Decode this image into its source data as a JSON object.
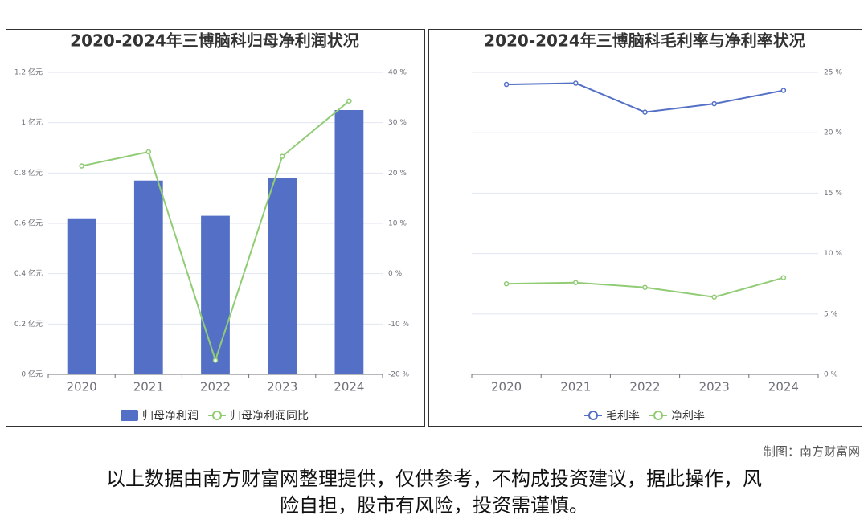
{
  "chart_data": [
    {
      "type": "combo",
      "title": "2020-2024年三博脑科归母净利润状况",
      "categories": [
        "2020",
        "2021",
        "2022",
        "2023",
        "2024"
      ],
      "series": [
        {
          "name": "归母净利润",
          "type": "bar",
          "color": "#5470c6",
          "values": [
            0.62,
            0.77,
            0.63,
            0.78,
            1.05
          ]
        },
        {
          "name": "归母净利润同比",
          "type": "line",
          "axis": "y2",
          "color": "#91cc75",
          "values": [
            21.4,
            24.2,
            -17.2,
            23.3,
            34.3
          ]
        }
      ],
      "ylim": [
        0,
        1.2
      ],
      "yticks": [
        {
          "value": 0,
          "label": "0 亿元"
        },
        {
          "value": 0.2,
          "label": "0.2 亿元"
        },
        {
          "value": 0.4,
          "label": "0.4 亿元"
        },
        {
          "value": 0.6,
          "label": "0.6 亿元"
        },
        {
          "value": 0.8,
          "label": "0.8 亿元"
        },
        {
          "value": 1,
          "label": "1 亿元"
        },
        {
          "value": 1.2,
          "label": "1.2 亿元"
        }
      ],
      "y2lim": [
        -20,
        40
      ],
      "y2ticks": [
        {
          "value": -20,
          "label": "-20 %"
        },
        {
          "value": -10,
          "label": "-10 %"
        },
        {
          "value": 0,
          "label": "0 %"
        },
        {
          "value": 10,
          "label": "10 %"
        },
        {
          "value": 20,
          "label": "20 %"
        },
        {
          "value": 30,
          "label": "30 %"
        },
        {
          "value": 40,
          "label": "40 %"
        }
      ],
      "grid": true,
      "legend": "bottom"
    },
    {
      "type": "line",
      "title": "2020-2024年三博脑科毛利率与净利率状况",
      "categories": [
        "2020",
        "2021",
        "2022",
        "2023",
        "2024"
      ],
      "series": [
        {
          "name": "毛利率",
          "type": "line",
          "color": "#5470c6",
          "values": [
            24.0,
            24.1,
            21.7,
            22.4,
            23.5
          ]
        },
        {
          "name": "净利率",
          "type": "line",
          "color": "#91cc75",
          "values": [
            7.5,
            7.6,
            7.2,
            6.4,
            8.0
          ]
        }
      ],
      "ylim": [
        0,
        25
      ],
      "yticks": [
        {
          "value": 0,
          "label": "0 %"
        },
        {
          "value": 5,
          "label": "5 %"
        },
        {
          "value": 10,
          "label": "10 %"
        },
        {
          "value": 15,
          "label": "15 %"
        },
        {
          "value": 20,
          "label": "20 %"
        },
        {
          "value": 25,
          "label": "25 %"
        }
      ],
      "yaxis_side": "right",
      "grid": true,
      "legend": "bottom"
    }
  ],
  "credit": "制图：南方财富网",
  "disclaimer": [
    "以上数据由南方财富网整理提供，仅供参考，不构成投资建议，据此操作，风",
    "险自担，股市有风险，投资需谨慎。"
  ]
}
